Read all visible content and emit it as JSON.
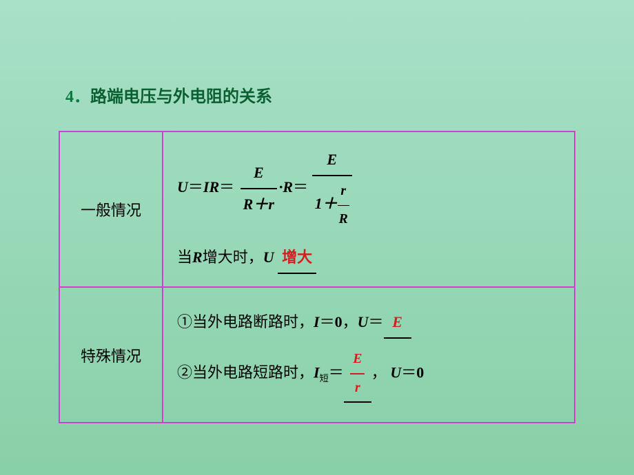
{
  "heading": {
    "number": "4．",
    "text": "路端电压与外电阻的关系"
  },
  "table": {
    "border_color": "#d040d0",
    "row1": {
      "label": "一般情况",
      "formula": {
        "U": "U",
        "eq": "＝",
        "IR": "IR",
        "frac1_num": "E",
        "frac1_den": "R＋r",
        "dot": "·",
        "R": "R",
        "frac2_num": "E",
        "frac2_den_left": "1＋",
        "frac2_inner_num": "r",
        "frac2_inner_den": "R"
      },
      "line2_pre": "当",
      "line2_R": "R",
      "line2_mid": "增大时，",
      "line2_U": "U",
      "line2_blank": "增大"
    },
    "row2": {
      "label": "特殊情况",
      "case1": {
        "num": "①",
        "pre": "当外电路断路时，",
        "I": "I",
        "eq": "＝",
        "zero": "0",
        "comma": "，",
        "U": "U",
        "eq2": "＝",
        "blank": "E"
      },
      "case2": {
        "num": "②",
        "pre": "当外电路短路时，",
        "I": "I",
        "sub": "短",
        "eq": "＝",
        "frac_num": "E",
        "frac_den": "r",
        "comma": "，",
        "U": "U",
        "eq2": "＝",
        "zero": "0"
      }
    }
  },
  "colors": {
    "heading": "#0a6030",
    "red": "#d02020",
    "bg_top": "#a8e0c8",
    "bg_bot": "#88d0a8"
  }
}
